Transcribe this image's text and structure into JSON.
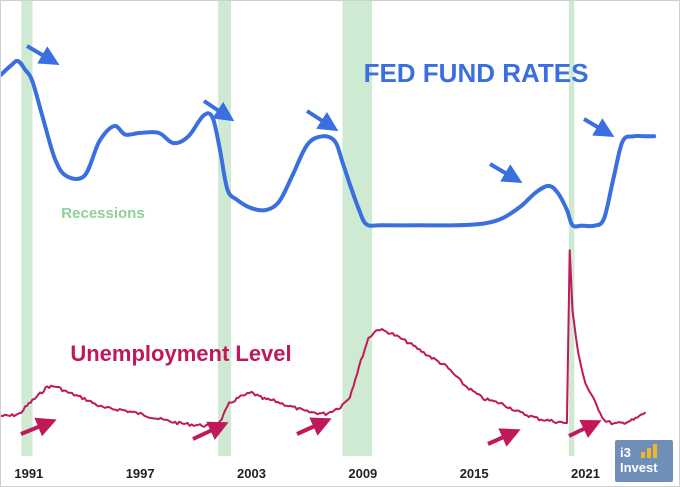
{
  "chart_data": {
    "type": "line",
    "title": "FED FUND RATES",
    "x_tick_labels": [
      "1991",
      "1997",
      "2003",
      "2009",
      "2015",
      "2021"
    ],
    "x_range": [
      1989.5,
      2025.5
    ],
    "recessions": [
      {
        "start": 1990.6,
        "end": 1991.2
      },
      {
        "start": 2001.2,
        "end": 2001.9
      },
      {
        "start": 2007.9,
        "end": 2009.5
      },
      {
        "start": 2020.1,
        "end": 2020.4
      }
    ],
    "recessions_label": "Recessions",
    "series": [
      {
        "name": "FED FUND RATES",
        "color": "#3a6fe0",
        "x": [
          1989.5,
          1990.0,
          1990.4,
          1990.8,
          1991.2,
          1991.8,
          1992.4,
          1993.0,
          1994.0,
          1994.8,
          1995.6,
          1996.2,
          1997.0,
          1998.0,
          1998.8,
          1999.6,
          2000.4,
          2000.9,
          2001.3,
          2001.7,
          2002.2,
          2003.0,
          2003.8,
          2004.5,
          2005.2,
          2006.0,
          2006.8,
          2007.5,
          2007.9,
          2008.3,
          2008.8,
          2009.2,
          2010.0,
          2012.0,
          2014.0,
          2015.5,
          2016.5,
          2017.5,
          2018.3,
          2019.0,
          2019.5,
          2020.0,
          2020.3,
          2020.8,
          2021.5,
          2022.0,
          2022.5,
          2023.0,
          2023.6,
          2024.2,
          2024.7
        ],
        "y": [
          8.9,
          9.4,
          9.7,
          9.2,
          8.5,
          6.2,
          4.0,
          3.0,
          3.0,
          5.0,
          5.9,
          5.4,
          5.5,
          5.5,
          4.9,
          5.3,
          6.5,
          6.4,
          4.5,
          2.2,
          1.6,
          1.1,
          1.0,
          1.5,
          3.0,
          4.8,
          5.3,
          5.0,
          3.8,
          2.5,
          1.0,
          0.15,
          0.1,
          0.1,
          0.1,
          0.2,
          0.5,
          1.2,
          2.0,
          2.4,
          2.0,
          1.0,
          0.1,
          0.08,
          0.08,
          0.5,
          2.8,
          5.0,
          5.3,
          5.3,
          5.3
        ]
      },
      {
        "name": "Unemployment Level",
        "color": "#c0185a",
        "x": [
          1989.5,
          1990.0,
          1990.5,
          1991.0,
          1991.5,
          1992.0,
          1992.5,
          1993.0,
          1994.0,
          1995.0,
          1996.0,
          1997.0,
          1998.0,
          1999.0,
          2000.0,
          2000.8,
          2001.3,
          2001.8,
          2002.3,
          2003.0,
          2003.6,
          2004.2,
          2005.0,
          2006.0,
          2007.0,
          2007.8,
          2008.3,
          2008.8,
          2009.3,
          2009.8,
          2010.5,
          2011.5,
          2012.5,
          2013.5,
          2014.5,
          2015.5,
          2016.5,
          2017.5,
          2018.5,
          2019.5,
          2020.0,
          2020.15,
          2020.3,
          2020.6,
          2021.0,
          2021.5,
          2022.0,
          2022.5,
          2023.0,
          2023.6,
          2024.2
        ],
        "y": [
          6.6,
          6.6,
          6.8,
          7.8,
          8.6,
          9.5,
          9.5,
          9.0,
          8.3,
          7.4,
          7.2,
          6.8,
          6.3,
          5.9,
          5.7,
          5.6,
          6.0,
          7.8,
          8.4,
          8.9,
          8.3,
          8.1,
          7.6,
          7.0,
          6.8,
          7.5,
          8.5,
          11.5,
          14.3,
          15.2,
          14.8,
          13.8,
          12.6,
          11.5,
          9.6,
          8.3,
          7.8,
          6.9,
          6.3,
          6.0,
          5.9,
          23.0,
          17.0,
          12.8,
          9.8,
          8.0,
          6.2,
          5.8,
          5.9,
          6.2,
          6.9
        ]
      }
    ]
  },
  "logo": {
    "line1": "i3",
    "line2": "Invest"
  }
}
